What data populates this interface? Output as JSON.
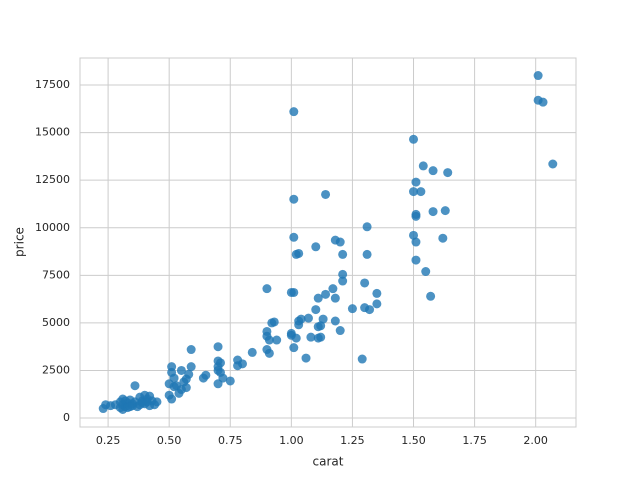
{
  "chart_data": {
    "type": "scatter",
    "xlabel": "carat",
    "ylabel": "price",
    "color": "#1f77b4",
    "grid": true,
    "xlim": [
      0.135,
      2.165
    ],
    "ylim": [
      -470,
      18920
    ],
    "xticks": [
      0.25,
      {
        "value": 0.5,
        "label": "0.50"
      },
      0.75,
      {
        "value": 1,
        "label": "1.00"
      },
      1.25,
      {
        "value": 1.5,
        "label": "1.50"
      },
      1.75,
      {
        "value": 2,
        "label": "2.00"
      }
    ],
    "yticks": [
      0,
      2500,
      5000,
      7500,
      10000,
      12500,
      15000,
      17500
    ],
    "x": [
      2.01,
      2.01,
      2.03,
      2.07,
      1.01,
      1.5,
      1.54,
      1.58,
      1.64,
      1.51,
      1.5,
      1.53,
      1.01,
      1.14,
      1.51,
      1.51,
      1.58,
      1.63,
      1.31,
      1.5,
      1.51,
      1.62,
      1.01,
      1.1,
      1.18,
      1.2,
      1.02,
      1.03,
      1.21,
      1.31,
      1.51,
      1.55,
      1.21,
      1.21,
      1.3,
      1.57,
      0.9,
      1.0,
      1.01,
      1.17,
      1.14,
      1.18,
      1.11,
      1.35,
      1.35,
      1.3,
      1.25,
      1.32,
      1.1,
      0.93,
      0.92,
      1.03,
      1.04,
      1.07,
      1.13,
      1.18,
      1.12,
      1.11,
      1.03,
      1.2,
      0.9,
      0.9,
      0.91,
      0.94,
      1.0,
      1.0,
      1.02,
      1.08,
      1.11,
      1.12,
      1.01,
      0.9,
      0.91,
      1.06,
      1.29,
      0.7,
      0.59,
      0.7,
      0.71,
      0.7,
      0.7,
      0.71,
      0.78,
      0.8,
      0.78,
      0.84,
      0.72,
      0.75,
      0.7,
      0.65,
      0.64,
      0.58,
      0.57,
      0.59,
      0.55,
      0.51,
      0.51,
      0.52,
      0.5,
      0.53,
      0.55,
      0.56,
      0.57,
      0.54,
      0.5,
      0.51,
      0.52,
      0.36,
      0.23,
      0.24,
      0.26,
      0.28,
      0.3,
      0.31,
      0.31,
      0.32,
      0.32,
      0.33,
      0.33,
      0.34,
      0.35,
      0.35,
      0.36,
      0.37,
      0.38,
      0.38,
      0.39,
      0.4,
      0.4,
      0.41,
      0.42,
      0.42,
      0.43,
      0.44,
      0.45,
      0.3,
      0.31,
      0.34,
      0.39,
      0.41
    ],
    "y": [
      18000,
      16700,
      16600,
      13350,
      16100,
      14650,
      13250,
      13000,
      12900,
      12400,
      11900,
      11900,
      11500,
      11750,
      10700,
      10600,
      10850,
      10900,
      10050,
      9600,
      9250,
      9450,
      9500,
      9000,
      9350,
      9250,
      8600,
      8650,
      8600,
      8600,
      8300,
      7700,
      7550,
      7200,
      7100,
      6400,
      6800,
      6600,
      6600,
      6800,
      6500,
      6300,
      6300,
      6550,
      6000,
      5800,
      5750,
      5700,
      5700,
      5050,
      5000,
      5100,
      5200,
      5250,
      5200,
      5100,
      4850,
      4800,
      4900,
      4600,
      4550,
      4300,
      4100,
      4100,
      4450,
      4350,
      4200,
      4250,
      4200,
      4250,
      3700,
      3600,
      3400,
      3150,
      3100,
      3750,
      3600,
      3000,
      2900,
      2700,
      2500,
      2400,
      3050,
      2850,
      2750,
      3450,
      2100,
      1950,
      1800,
      2250,
      2100,
      2300,
      2050,
      2700,
      2500,
      2700,
      2400,
      2100,
      1800,
      1700,
      1500,
      1900,
      1600,
      1300,
      1200,
      1000,
      1650,
      1700,
      500,
      700,
      650,
      700,
      550,
      700,
      450,
      900,
      600,
      800,
      550,
      950,
      650,
      750,
      850,
      600,
      1100,
      700,
      900,
      1200,
      750,
      1000,
      1150,
      650,
      900,
      700,
      850,
      850,
      1000,
      600,
      800,
      850
    ]
  }
}
